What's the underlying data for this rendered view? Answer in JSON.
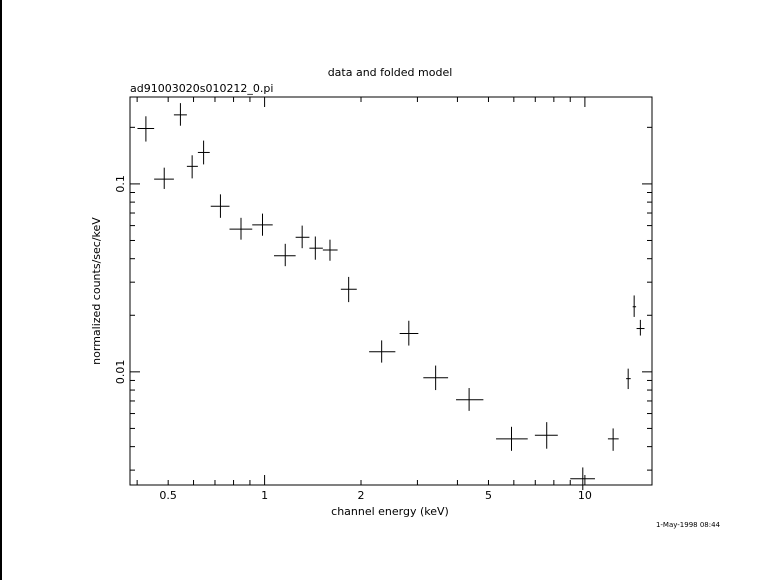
{
  "chart_data": {
    "type": "scatter",
    "title": "data and folded model",
    "subtitle": "ad91003020s010212_0.pi",
    "xlabel": "channel energy (keV)",
    "ylabel": "normalized counts/sec/keV",
    "xscale": "log",
    "yscale": "log",
    "xlim": [
      0.38,
      16.2
    ],
    "ylim": [
      0.0025,
      0.29
    ],
    "x_ticks": [
      {
        "value": 0.5,
        "label": "0.5"
      },
      {
        "value": 1,
        "label": "1"
      },
      {
        "value": 2,
        "label": "2"
      },
      {
        "value": 5,
        "label": "5"
      },
      {
        "value": 10,
        "label": "10"
      }
    ],
    "y_ticks": [
      {
        "value": 0.1,
        "label": "0.1"
      },
      {
        "value": 0.01,
        "label": "0.01"
      }
    ],
    "grid": false,
    "timestamp": "1-May-1998 08:44",
    "series": [
      {
        "points": [
          {
            "x": 0.426,
            "y": 0.197,
            "xlo": 0.401,
            "xhi": 0.452,
            "ylo": 0.168,
            "yhi": 0.229
          },
          {
            "x": 0.486,
            "y": 0.106,
            "xlo": 0.452,
            "xhi": 0.521,
            "ylo": 0.094,
            "yhi": 0.122
          },
          {
            "x": 0.546,
            "y": 0.233,
            "xlo": 0.521,
            "xhi": 0.572,
            "ylo": 0.204,
            "yhi": 0.269
          },
          {
            "x": 0.594,
            "y": 0.124,
            "xlo": 0.572,
            "xhi": 0.619,
            "ylo": 0.107,
            "yhi": 0.142
          },
          {
            "x": 0.645,
            "y": 0.147,
            "xlo": 0.619,
            "xhi": 0.674,
            "ylo": 0.127,
            "yhi": 0.17
          },
          {
            "x": 0.728,
            "y": 0.076,
            "xlo": 0.679,
            "xhi": 0.777,
            "ylo": 0.066,
            "yhi": 0.088
          },
          {
            "x": 0.844,
            "y": 0.0575,
            "xlo": 0.777,
            "xhi": 0.915,
            "ylo": 0.0505,
            "yhi": 0.066
          },
          {
            "x": 0.985,
            "y": 0.0605,
            "xlo": 0.915,
            "xhi": 1.06,
            "ylo": 0.053,
            "yhi": 0.0695
          },
          {
            "x": 1.16,
            "y": 0.0415,
            "xlo": 1.07,
            "xhi": 1.25,
            "ylo": 0.0365,
            "yhi": 0.048
          },
          {
            "x": 1.31,
            "y": 0.052,
            "xlo": 1.25,
            "xhi": 1.38,
            "ylo": 0.0455,
            "yhi": 0.06
          },
          {
            "x": 1.44,
            "y": 0.0455,
            "xlo": 1.38,
            "xhi": 1.52,
            "ylo": 0.0395,
            "yhi": 0.0525
          },
          {
            "x": 1.6,
            "y": 0.0445,
            "xlo": 1.52,
            "xhi": 1.69,
            "ylo": 0.039,
            "yhi": 0.0505
          },
          {
            "x": 1.83,
            "y": 0.0275,
            "xlo": 1.73,
            "xhi": 1.94,
            "ylo": 0.0235,
            "yhi": 0.032
          },
          {
            "x": 2.32,
            "y": 0.0128,
            "xlo": 2.12,
            "xhi": 2.56,
            "ylo": 0.0112,
            "yhi": 0.0147
          },
          {
            "x": 2.82,
            "y": 0.016,
            "xlo": 2.64,
            "xhi": 3.02,
            "ylo": 0.0138,
            "yhi": 0.0187
          },
          {
            "x": 3.42,
            "y": 0.0093,
            "xlo": 3.13,
            "xhi": 3.74,
            "ylo": 0.008,
            "yhi": 0.0108
          },
          {
            "x": 4.35,
            "y": 0.0071,
            "xlo": 3.96,
            "xhi": 4.82,
            "ylo": 0.0062,
            "yhi": 0.0082
          },
          {
            "x": 5.9,
            "y": 0.0044,
            "xlo": 5.28,
            "xhi": 6.63,
            "ylo": 0.0038,
            "yhi": 0.0051
          },
          {
            "x": 7.6,
            "y": 0.0046,
            "xlo": 6.98,
            "xhi": 8.23,
            "ylo": 0.0039,
            "yhi": 0.0054
          },
          {
            "x": 9.85,
            "y": 0.0027,
            "xlo": 9.0,
            "xhi": 10.75,
            "ylo": 0.00235,
            "yhi": 0.0031
          },
          {
            "x": 12.25,
            "y": 0.0044,
            "xlo": 11.8,
            "xhi": 12.75,
            "ylo": 0.0038,
            "yhi": 0.005
          },
          {
            "x": 13.65,
            "y": 0.0092,
            "xlo": 13.45,
            "xhi": 13.9,
            "ylo": 0.0081,
            "yhi": 0.0104
          },
          {
            "x": 14.25,
            "y": 0.0222,
            "xlo": 14.1,
            "xhi": 14.45,
            "ylo": 0.0196,
            "yhi": 0.0255
          },
          {
            "x": 14.9,
            "y": 0.017,
            "xlo": 14.5,
            "xhi": 15.35,
            "ylo": 0.0156,
            "yhi": 0.0189
          }
        ]
      }
    ]
  }
}
